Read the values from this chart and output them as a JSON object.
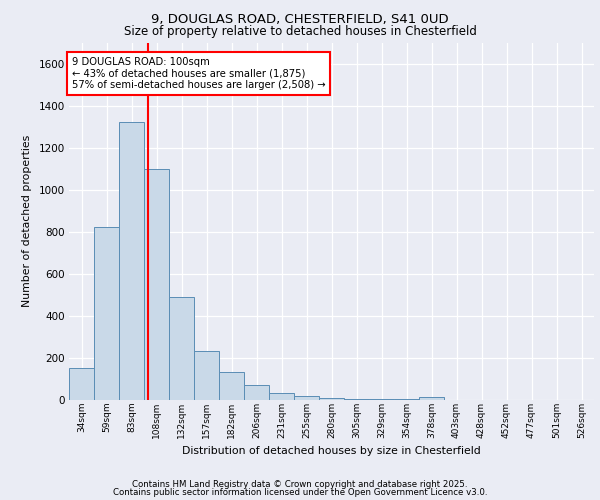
{
  "title1": "9, DOUGLAS ROAD, CHESTERFIELD, S41 0UD",
  "title2": "Size of property relative to detached houses in Chesterfield",
  "xlabel": "Distribution of detached houses by size in Chesterfield",
  "ylabel": "Number of detached properties",
  "bar_labels": [
    "34sqm",
    "59sqm",
    "83sqm",
    "108sqm",
    "132sqm",
    "157sqm",
    "182sqm",
    "206sqm",
    "231sqm",
    "255sqm",
    "280sqm",
    "305sqm",
    "329sqm",
    "354sqm",
    "378sqm",
    "403sqm",
    "428sqm",
    "452sqm",
    "477sqm",
    "501sqm",
    "526sqm"
  ],
  "bar_values": [
    150,
    825,
    1320,
    1100,
    490,
    235,
    135,
    70,
    35,
    20,
    10,
    5,
    5,
    5,
    15,
    0,
    0,
    0,
    0,
    0,
    0
  ],
  "bar_color": "#c9d9e8",
  "bar_edge_color": "#5a8db5",
  "vline_color": "red",
  "annotation_text": "9 DOUGLAS ROAD: 100sqm\n← 43% of detached houses are smaller (1,875)\n57% of semi-detached houses are larger (2,508) →",
  "annotation_box_color": "white",
  "annotation_box_edge": "red",
  "ylim": [
    0,
    1700
  ],
  "yticks": [
    0,
    200,
    400,
    600,
    800,
    1000,
    1200,
    1400,
    1600
  ],
  "bg_color": "#eaecf4",
  "plot_bg_color": "#eaecf4",
  "grid_color": "white",
  "footer1": "Contains HM Land Registry data © Crown copyright and database right 2025.",
  "footer2": "Contains public sector information licensed under the Open Government Licence v3.0."
}
